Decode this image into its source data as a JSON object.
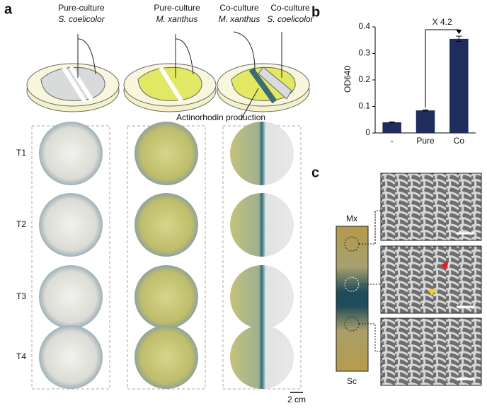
{
  "figure": {
    "panel_labels": [
      "a",
      "b",
      "c"
    ],
    "culture_labels": [
      {
        "type": "Pure-culture",
        "species": "S. coelicolor"
      },
      {
        "type": "Pure-culture",
        "species": "M. xanthus"
      },
      {
        "type": "Co-culture",
        "species": "M. xanthus"
      },
      {
        "type": "Co-culture",
        "species": "S. coelicolor"
      }
    ],
    "production_label": "Actinorhodin production",
    "rows": [
      "T1",
      "T2",
      "T3",
      "T4"
    ],
    "scale_bar": "2 cm",
    "strip_labels": [
      "Mx",
      "Sc"
    ]
  },
  "chart_data": {
    "type": "bar",
    "ylabel": "OD640",
    "annotation": "X 4.2",
    "categories": [
      "-",
      "Pure",
      "Co"
    ],
    "values": [
      0.04,
      0.085,
      0.355
    ],
    "errors": [
      0.002,
      0.002,
      0.01
    ],
    "color": "#1f2d5c",
    "ylim": [
      0,
      0.4
    ],
    "yticks": [
      0,
      0.1,
      0.2,
      0.3,
      0.4
    ],
    "grid": false
  }
}
